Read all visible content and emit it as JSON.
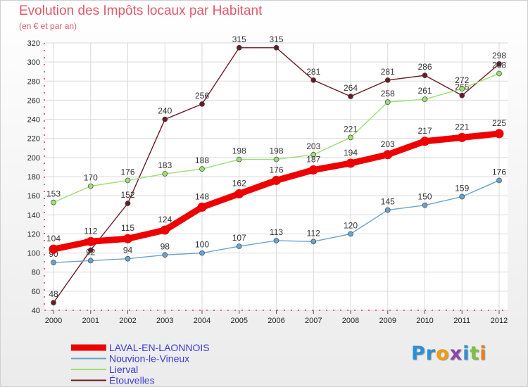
{
  "chart_data": {
    "type": "line",
    "title": "Evolution des Impôts locaux par Habitant",
    "subtitle": "(en € et par an)",
    "categories": [
      "2000",
      "2001",
      "2002",
      "2003",
      "2004",
      "2005",
      "2006",
      "2007",
      "2008",
      "2009",
      "2010",
      "2011",
      "2012"
    ],
    "ylim": [
      40,
      320
    ],
    "yticks": [
      40,
      60,
      80,
      100,
      120,
      140,
      160,
      180,
      200,
      220,
      240,
      260,
      280,
      300,
      320
    ],
    "series": [
      {
        "name": "Étouvelles",
        "color": "#6b1a22",
        "width": "thin",
        "values": [
          48,
          103,
          152,
          240,
          256,
          315,
          315,
          281,
          264,
          281,
          286,
          265,
          298
        ]
      },
      {
        "name": "Lierval",
        "color": "#9cde74",
        "width": "thin",
        "values": [
          153,
          170,
          176,
          183,
          188,
          198,
          198,
          203,
          221,
          258,
          261,
          272,
          288
        ]
      },
      {
        "name": "Nouvion-le-Vineux",
        "color": "#6aa2cf",
        "width": "thin",
        "values": [
          90,
          92,
          94,
          98,
          100,
          107,
          113,
          112,
          120,
          145,
          150,
          159,
          176
        ]
      },
      {
        "name": "LAVAL-EN-LAONNOIS",
        "color": "#ee0000",
        "width": "thick",
        "values": [
          104,
          112,
          115,
          124,
          148,
          162,
          176,
          187,
          194,
          203,
          217,
          221,
          225
        ]
      }
    ],
    "legend": [
      "LAVAL-EN-LAONNOIS",
      "Nouvion-le-Vineux",
      "Lierval",
      "Étouvelles"
    ],
    "legend_position": "bottom-left",
    "grid": true
  },
  "logo": {
    "letters": [
      "P",
      "r",
      "o",
      "x",
      "i",
      "t",
      "i"
    ],
    "colors": [
      "#2b8fd6",
      "#2b8fd6",
      "#f39c12",
      "#8e44ad",
      "#2b8fd6",
      "#7cc242",
      "#e67e22"
    ]
  }
}
